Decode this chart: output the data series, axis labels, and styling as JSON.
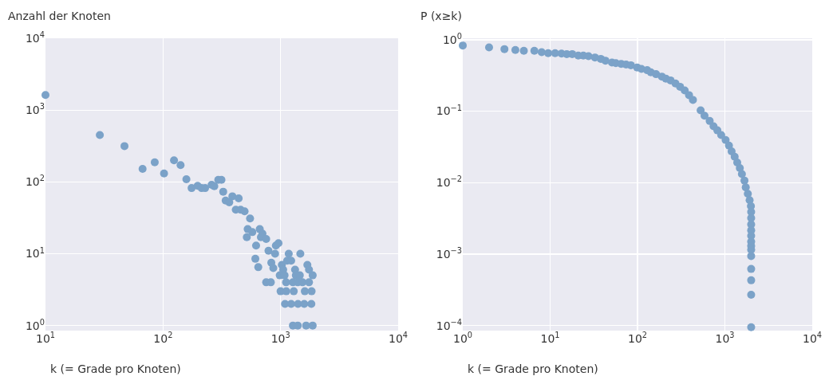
{
  "chart_data": [
    {
      "type": "scatter",
      "ylabel": "Anzahl der Knoten",
      "xlabel": "k (= Grade pro Knoten)",
      "log": "xy",
      "grid": true,
      "marker": "circle",
      "color": "#7ba2c8",
      "x": [
        10,
        29,
        47,
        67,
        85,
        102,
        124,
        141,
        158,
        175,
        197,
        213,
        228,
        259,
        273,
        295,
        314,
        325,
        341,
        366,
        389,
        440,
        416,
        457,
        494,
        550,
        525,
        575,
        516,
        665,
        701,
        680,
        754,
        619,
        789,
        912,
        960,
        898,
        610,
        646,
        834,
        867,
        754,
        826,
        1025,
        1052,
        984,
        1081,
        1173,
        1137,
        1230,
        1472,
        1328,
        1349,
        1457,
        1690,
        1745,
        1875,
        1114,
        1273,
        1400,
        1535,
        1745,
        1000,
        1117,
        1294,
        1607,
        1836,
        1091,
        1230,
        1406,
        1589,
        1827,
        1273,
        1400,
        1649,
        1875
      ],
      "values": [
        1620,
        450,
        315,
        152,
        187,
        131,
        200,
        171,
        109,
        82,
        88,
        82,
        82,
        91,
        87,
        107,
        107,
        73,
        55,
        52,
        63,
        59,
        41,
        41,
        39,
        31,
        22,
        20,
        17,
        22,
        19,
        17,
        16,
        13,
        11,
        13,
        14,
        10,
        8.5,
        6.5,
        7.5,
        6.3,
        4,
        4,
        7,
        6,
        5,
        5,
        10,
        8,
        8,
        10,
        6,
        5,
        5,
        7,
        6,
        5,
        4,
        4,
        4,
        4,
        4,
        3,
        3,
        3,
        3,
        3,
        2,
        2,
        2,
        2,
        2,
        1,
        1,
        1,
        1
      ],
      "xlim": [
        10,
        10000
      ],
      "ylim": [
        0.85,
        10000
      ],
      "xticks": [
        {
          "value": 10,
          "label": "10$^{1}$"
        },
        {
          "value": 100,
          "label": "10$^{2}$"
        },
        {
          "value": 1000,
          "label": "10$^{3}$"
        },
        {
          "value": 10000,
          "label": "10$^{4}$"
        }
      ],
      "yticks": [
        {
          "value": 1,
          "label": "10$^{0}$"
        },
        {
          "value": 10,
          "label": "10$^{1}$"
        },
        {
          "value": 100,
          "label": "10$^{2}$"
        },
        {
          "value": 1000,
          "label": "10$^{3}$"
        },
        {
          "value": 10000,
          "label": "10$^{4}$"
        }
      ]
    },
    {
      "type": "scatter",
      "ylabel": "P (x≥k)",
      "xlabel": "k (= Grade pro Knoten)",
      "log": "xy",
      "grid": true,
      "marker": "circle",
      "color": "#7ba2c8",
      "x": [
        1,
        2,
        3,
        4,
        5,
        6.6,
        8,
        9.5,
        11.4,
        13.5,
        15.5,
        17.9,
        21,
        24,
        27.5,
        32.6,
        38,
        43,
        51,
        56.5,
        65,
        74,
        84,
        99,
        111,
        129,
        142,
        163,
        190,
        211,
        239,
        272,
        307,
        347,
        389,
        431,
        528,
        585,
        670,
        742,
        820,
        908,
        1020,
        1114,
        1194,
        1295,
        1385,
        1483,
        1567,
        1676,
        1734,
        1832,
        1920,
        1987,
        2000,
        2000,
        2000,
        2000,
        2000,
        2000,
        2000,
        2000,
        2000,
        2000,
        2000,
        2000,
        2000
      ],
      "values": [
        0.83,
        0.78,
        0.74,
        0.72,
        0.7,
        0.7,
        0.67,
        0.65,
        0.65,
        0.64,
        0.63,
        0.63,
        0.6,
        0.6,
        0.59,
        0.565,
        0.54,
        0.51,
        0.48,
        0.47,
        0.46,
        0.45,
        0.44,
        0.41,
        0.39,
        0.375,
        0.35,
        0.33,
        0.305,
        0.286,
        0.27,
        0.245,
        0.22,
        0.195,
        0.168,
        0.144,
        0.103,
        0.0865,
        0.073,
        0.0615,
        0.054,
        0.0464,
        0.0395,
        0.033,
        0.0274,
        0.0231,
        0.0191,
        0.016,
        0.0132,
        0.0107,
        0.0086,
        0.007,
        0.0057,
        0.0047,
        0.0039,
        0.0032,
        0.0026,
        0.00215,
        0.0018,
        0.0015,
        0.0013,
        0.00115,
        0.00094,
        0.00062,
        0.00043,
        0.00027,
        9.5e-05
      ],
      "xlim": [
        1,
        10000
      ],
      "ylim": [
        8.5e-05,
        1.05
      ],
      "xticks": [
        {
          "value": 1,
          "label": "10$^{0}$"
        },
        {
          "value": 10,
          "label": "10$^{1}$"
        },
        {
          "value": 100,
          "label": "10$^{2}$"
        },
        {
          "value": 1000,
          "label": "10$^{3}$"
        },
        {
          "value": 10000,
          "label": "10$^{4}$"
        }
      ],
      "yticks": [
        {
          "value": 1,
          "label": "10$^{0}$"
        },
        {
          "value": 0.1,
          "label": "10$^{−1}$"
        },
        {
          "value": 0.01,
          "label": "10$^{−2}$"
        },
        {
          "value": 0.001,
          "label": "10$^{−3}$"
        },
        {
          "value": 0.0001,
          "label": "10$^{−4}$"
        }
      ]
    }
  ]
}
